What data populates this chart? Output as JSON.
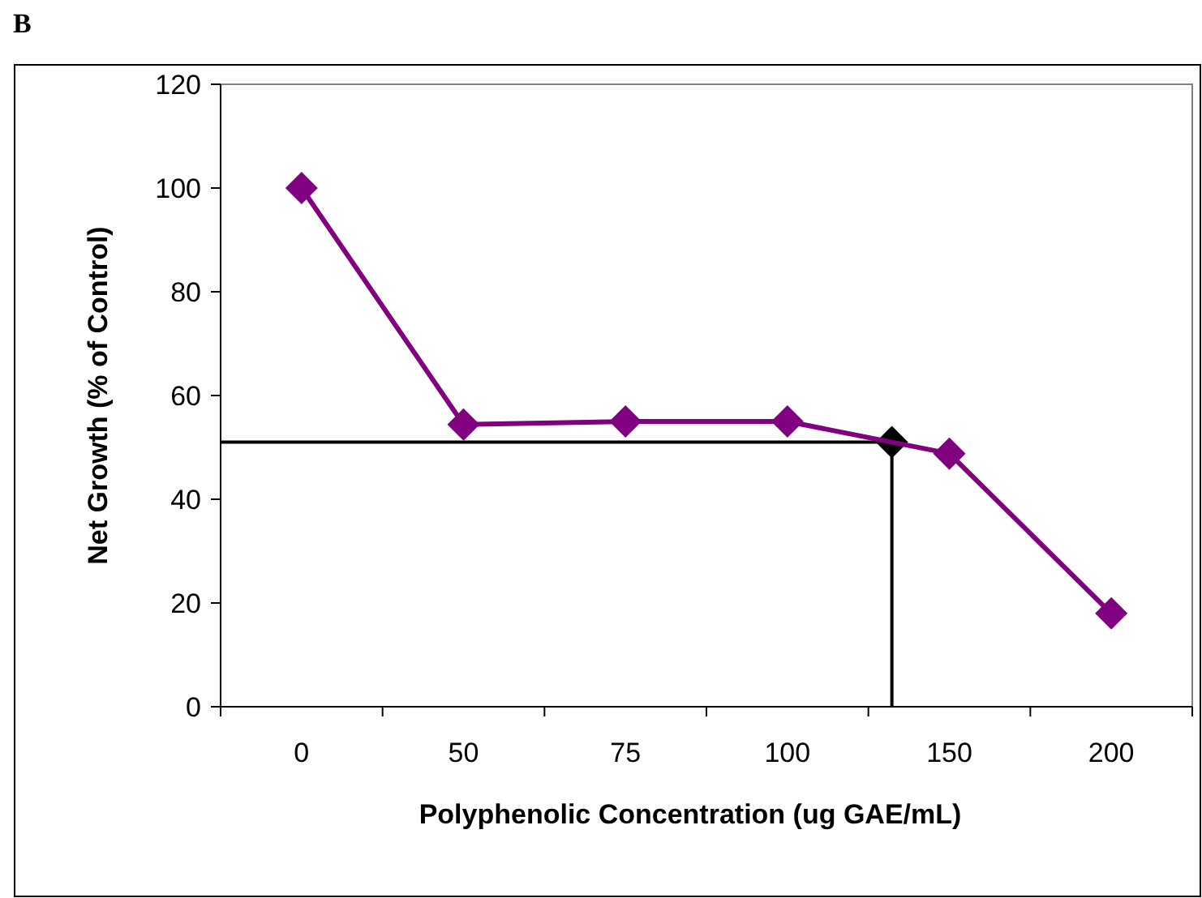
{
  "chart_data": {
    "type": "line",
    "title": "B",
    "xlabel": "Polyphenolic Concentration (ug GAE/mL)",
    "ylabel": "Net Growth (% of Control)",
    "categories": [
      "0",
      "50",
      "75",
      "100",
      "150",
      "200"
    ],
    "ylim": [
      0,
      120
    ],
    "yticks": [
      0,
      20,
      40,
      60,
      80,
      100,
      120
    ],
    "grid": false,
    "marker": "diamond",
    "line_style": "solid",
    "series": [
      {
        "color": "#800080",
        "values": [
          100,
          54.4,
          55,
          55,
          48.8,
          18
        ]
      }
    ],
    "ref_lines": [
      {
        "axis": "y",
        "value": 51,
        "color": "#000000"
      }
    ]
  }
}
